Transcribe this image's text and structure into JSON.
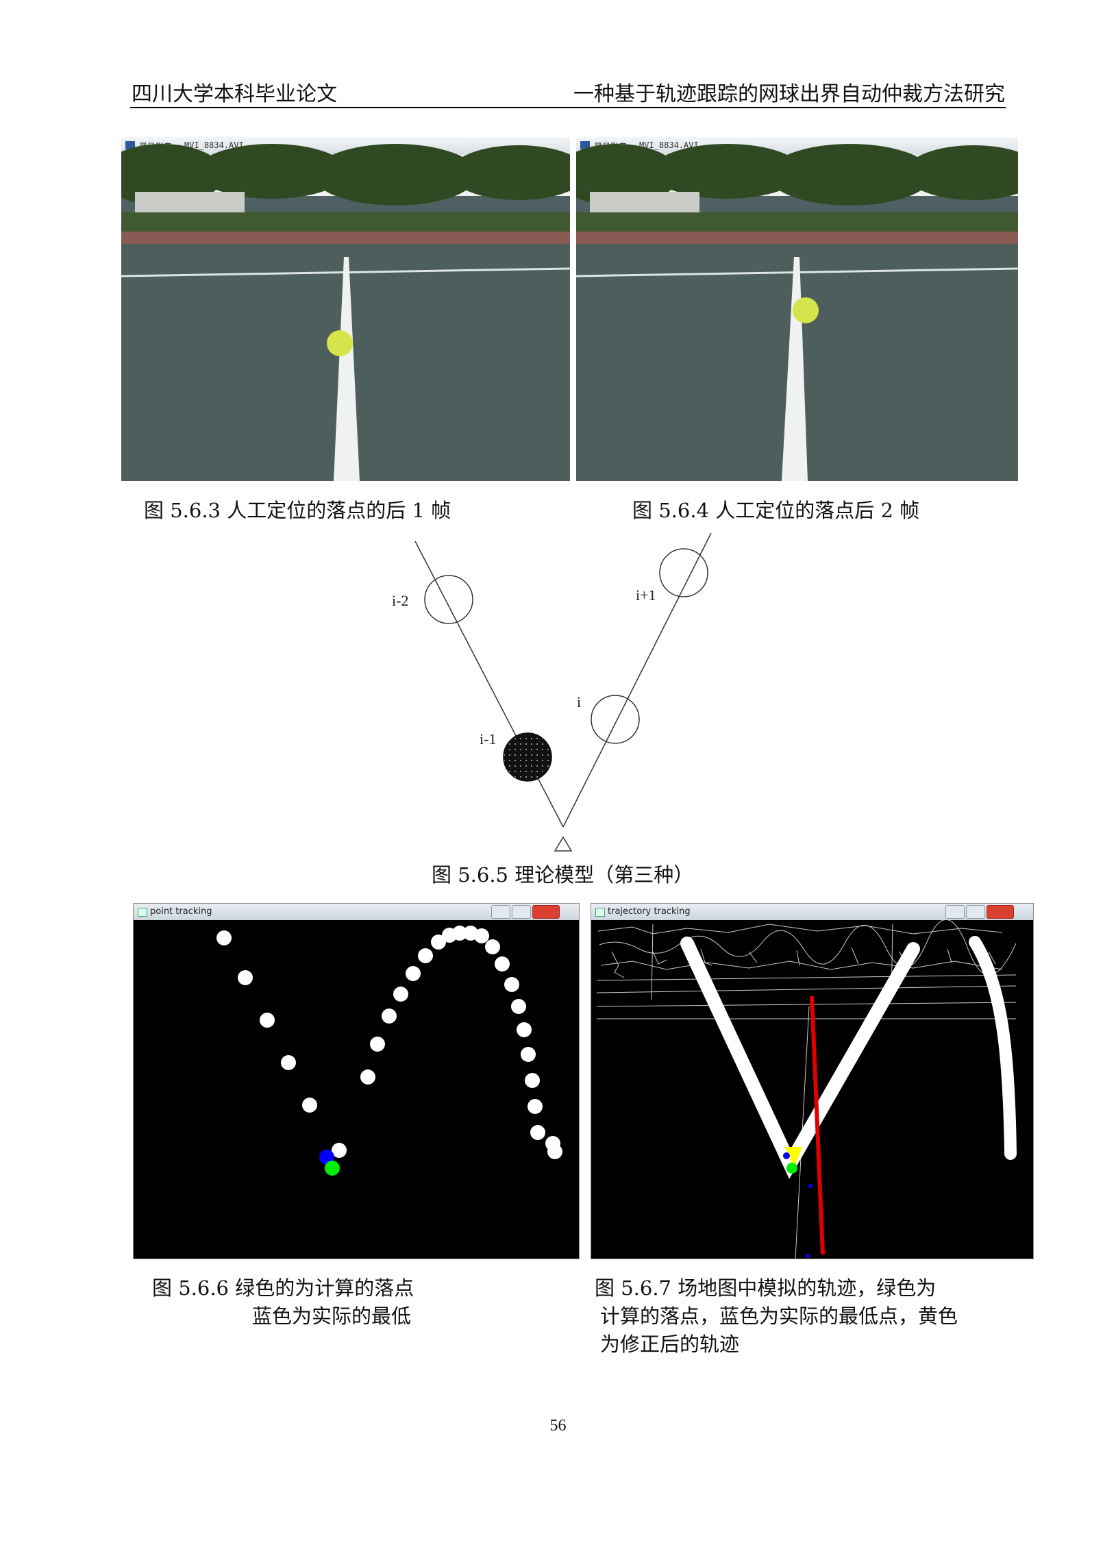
{
  "header": {
    "left": "四川大学本科毕业论文",
    "right": "一种基于轨迹跟踪的网球出界自动仲裁方法研究"
  },
  "figures": {
    "fig563": {
      "titlebar_app": "暴风影音",
      "titlebar_file": "MVI_8834.AVI",
      "caption": "图 5.6.3  人工定位的落点的后 1 帧"
    },
    "fig564": {
      "titlebar_app": "暴风影音",
      "titlebar_file": "MVI_8834.AVI",
      "caption": "图 5.6.4 人工定位的落点后 2 帧"
    },
    "fig565": {
      "labels": {
        "i_minus_2": "i-2",
        "i_plus_1": "i+1",
        "i": "i",
        "i_minus_1": "i-1"
      },
      "caption": "图 5.6.5 理论模型（第三种）"
    },
    "fig566": {
      "window_title": "point tracking",
      "caption_line1": "图 5.6.6    绿色的为计算的落点",
      "caption_line2": "蓝色为实际的最低"
    },
    "fig567": {
      "window_title": "trajectory tracking",
      "caption_line1": "图 5.6.7  场地图中模拟的轨迹，绿色为",
      "caption_line2": "计算的落点，蓝色为实际的最低点，黄色",
      "caption_line3": "为修正后的轨迹"
    }
  },
  "page_number": "56",
  "colors": {
    "computed_point": "#00ee00",
    "actual_lowest": "#0000ff",
    "corrected": "#ffff00",
    "line": "#e00000"
  }
}
